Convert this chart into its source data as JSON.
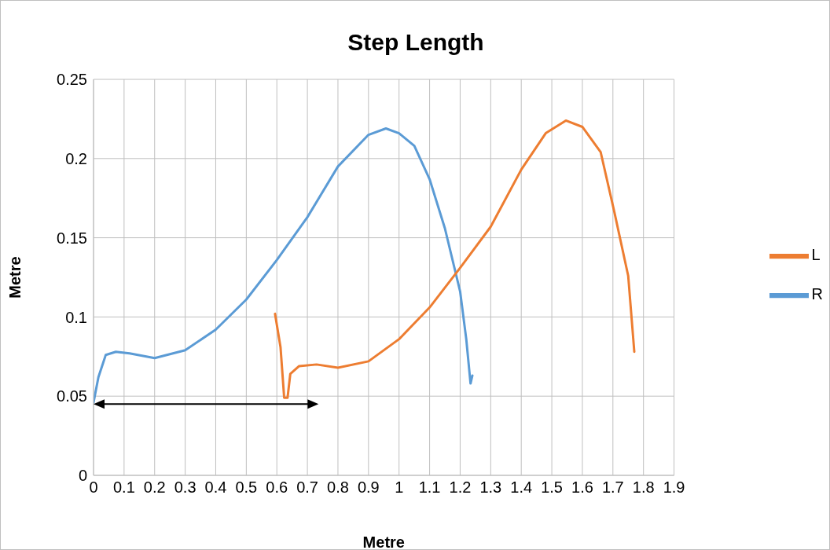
{
  "chart_data": {
    "type": "line",
    "title": "Step Length",
    "xlabel": "Metre",
    "ylabel": "Metre",
    "xlim": [
      0,
      1.9
    ],
    "xticks": [
      0,
      0.1,
      0.2,
      0.3,
      0.4,
      0.5,
      0.6,
      0.7,
      0.8,
      0.9,
      1,
      1.1,
      1.2,
      1.3,
      1.4,
      1.5,
      1.6,
      1.7,
      1.8,
      1.9
    ],
    "ylim": [
      0,
      0.25
    ],
    "yticks": [
      0,
      0.05,
      0.1,
      0.15,
      0.2,
      0.25
    ],
    "grid": true,
    "legend": "right",
    "marker": "none",
    "line_style": "solid",
    "series": [
      {
        "name": "R",
        "color": "#5b9bd5",
        "x": [
          0,
          0.016,
          0.04,
          0.073,
          0.118,
          0.2,
          0.3,
          0.4,
          0.5,
          0.6,
          0.7,
          0.8,
          0.9,
          0.957,
          1,
          1.05,
          1.1,
          1.15,
          1.2,
          1.22,
          1.234,
          1.24
        ],
        "values": [
          0.046,
          0.062,
          0.076,
          0.078,
          0.077,
          0.074,
          0.079,
          0.092,
          0.111,
          0.136,
          0.163,
          0.195,
          0.215,
          0.219,
          0.216,
          0.208,
          0.187,
          0.156,
          0.116,
          0.086,
          0.058,
          0.063
        ]
      },
      {
        "name": "L",
        "color": "#ed7d31",
        "x": [
          0.594,
          0.612,
          0.624,
          0.635,
          0.644,
          0.673,
          0.73,
          0.8,
          0.9,
          1,
          1.1,
          1.2,
          1.3,
          1.4,
          1.48,
          1.546,
          1.6,
          1.66,
          1.705,
          1.75,
          1.77
        ],
        "values": [
          0.102,
          0.081,
          0.049,
          0.049,
          0.064,
          0.069,
          0.07,
          0.068,
          0.072,
          0.086,
          0.106,
          0.131,
          0.157,
          0.193,
          0.216,
          0.224,
          0.22,
          0.204,
          0.166,
          0.126,
          0.078
        ]
      }
    ]
  }
}
